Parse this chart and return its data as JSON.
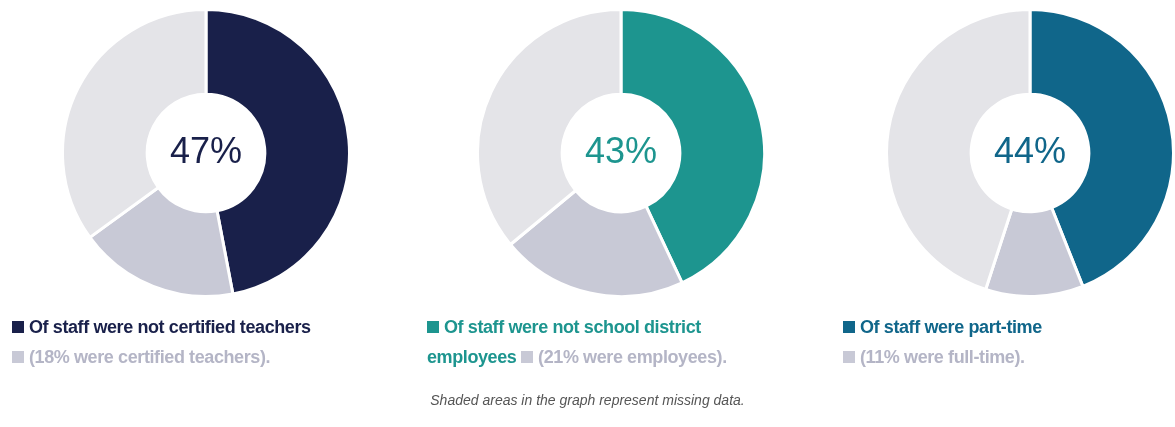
{
  "chart_data": [
    {
      "type": "donut",
      "categories": [
        "Of staff were not certified teachers",
        "(18% were certified teachers).",
        null
      ],
      "values": [
        47,
        18,
        35
      ],
      "colors": [
        "#19204a",
        "#c8c9d6",
        "#e4e4e8"
      ],
      "value_labels": [
        "47%",
        null,
        null
      ],
      "legend": "bottom"
    },
    {
      "type": "donut",
      "categories": [
        "Of staff were not school district employees",
        "(21% were employees).",
        null
      ],
      "values": [
        43,
        21,
        36
      ],
      "colors": [
        "#1d958f",
        "#c8c9d6",
        "#e4e4e8"
      ],
      "value_labels": [
        "43%",
        null,
        null
      ],
      "legend": "bottom"
    },
    {
      "type": "donut",
      "categories": [
        "Of staff were part-time",
        "(11% were full-time).",
        null
      ],
      "values": [
        44,
        11,
        45
      ],
      "colors": [
        "#10668a",
        "#c8c9d6",
        "#e4e4e8"
      ],
      "value_labels": [
        "44%",
        null,
        null
      ],
      "legend": "bottom",
      "annotations": [
        "Shaded areas in the graph represent missing data."
      ]
    }
  ]
}
